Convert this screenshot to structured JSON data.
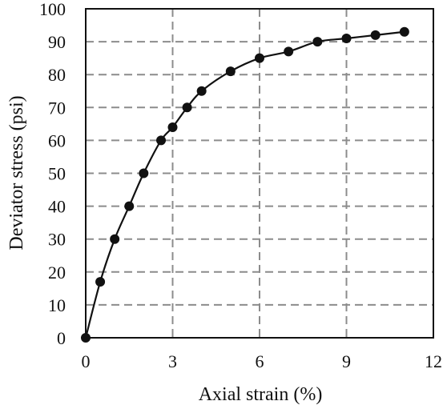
{
  "chart_data": {
    "type": "line",
    "title": "",
    "xlabel": "Axial strain (%)",
    "ylabel": "Deviator stress (psi)",
    "xlim": [
      0,
      12
    ],
    "ylim": [
      0,
      100
    ],
    "xticks": [
      0,
      3,
      6,
      9,
      12
    ],
    "yticks": [
      0,
      10,
      20,
      30,
      40,
      50,
      60,
      70,
      80,
      90,
      100
    ],
    "grid": true,
    "legend": "none",
    "colors": {
      "series": "#111111",
      "grid": "#8c8c8c"
    },
    "series": [
      {
        "x": [
          0,
          0.5,
          1,
          1.5,
          2,
          2.6,
          3,
          3.5,
          4,
          5,
          6,
          7,
          8,
          9,
          10,
          11
        ],
        "y": [
          0,
          17,
          30,
          40,
          50,
          60,
          64,
          70,
          75,
          81,
          85,
          87,
          90,
          91,
          92,
          93
        ]
      }
    ]
  }
}
